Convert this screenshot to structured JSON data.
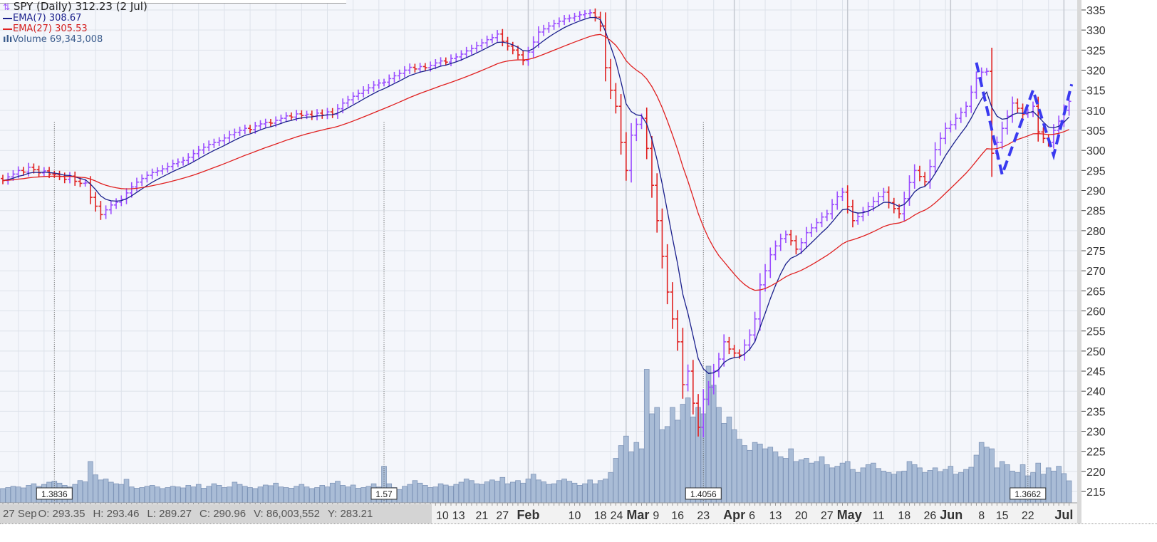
{
  "legend": {
    "title": "SPY (Daily) 312.23 (2 Jul)",
    "ema7": "EMA(7) 308.67",
    "ema27": "EMA(27) 305.53",
    "volume": "Volume 69,343,008"
  },
  "status": {
    "date": "27 Sep",
    "open": "O: 293.35",
    "high": "H: 293.46",
    "low": "L: 289.27",
    "close": "C: 290.96",
    "volume": "V: 86,003,552",
    "y": "Y: 283.21"
  },
  "colors": {
    "up": "#9b4dff",
    "down": "#e02020",
    "ema7": "#1a1f8c",
    "ema27": "#e02020",
    "volume": "#a9bcd6",
    "pattern": "#3a3af0"
  },
  "chart_data": {
    "type": "ohlc",
    "symbol": "SPY",
    "interval": "Daily",
    "ylim": [
      212,
      337
    ],
    "y_ticks": [
      215,
      220,
      225,
      230,
      235,
      240,
      245,
      250,
      255,
      260,
      265,
      270,
      275,
      280,
      285,
      290,
      295,
      300,
      305,
      310,
      315,
      320,
      325,
      330,
      335
    ],
    "x_ticks": [
      {
        "label": "10",
        "bar": 82
      },
      {
        "label": "13",
        "bar": 88
      },
      {
        "label": "21",
        "bar": 93
      },
      {
        "label": "27",
        "bar": 97
      },
      {
        "label": "Feb",
        "bar": 102,
        "bold": true
      },
      {
        "label": "10",
        "bar": 111
      },
      {
        "label": "18",
        "bar": 116
      },
      {
        "label": "24",
        "bar": 119
      },
      {
        "label": "Mar",
        "bar": 121,
        "bold": true
      },
      {
        "label": "9",
        "bar": 126
      },
      {
        "label": "16",
        "bar": 131
      },
      {
        "label": "23",
        "bar": 136
      },
      {
        "label": "Apr",
        "bar": 142,
        "bold": true
      },
      {
        "label": "6",
        "bar": 144
      },
      {
        "label": "13",
        "bar": 150
      },
      {
        "label": "20",
        "bar": 155
      },
      {
        "label": "27",
        "bar": 160
      },
      {
        "label": "May",
        "bar": 164,
        "bold": true
      },
      {
        "label": "11",
        "bar": 170
      },
      {
        "label": "18",
        "bar": 175
      },
      {
        "label": "26",
        "bar": 180
      },
      {
        "label": "Jun",
        "bar": 184,
        "bold": true
      },
      {
        "label": "8",
        "bar": 190
      },
      {
        "label": "15",
        "bar": 194
      },
      {
        "label": "22",
        "bar": 199
      },
      {
        "label": "Jul",
        "bar": 206,
        "bold": true
      }
    ],
    "close": [
      292.5,
      293.4,
      294.1,
      295.0,
      294.6,
      295.8,
      295.2,
      294.4,
      294.9,
      294.1,
      294.0,
      293.5,
      292.8,
      293.6,
      292.3,
      291.8,
      291.9,
      288.3,
      286.1,
      284.0,
      285.2,
      286.4,
      287.1,
      287.8,
      289.4,
      290.9,
      292.1,
      293.0,
      293.8,
      294.5,
      294.9,
      295.4,
      296.0,
      296.7,
      297.1,
      297.5,
      298.3,
      299.2,
      300.1,
      300.8,
      301.5,
      302.0,
      302.4,
      303.1,
      303.9,
      304.5,
      305.0,
      305.5,
      305.2,
      306.1,
      306.6,
      307.0,
      306.8,
      307.5,
      308.0,
      308.6,
      308.3,
      309.1,
      308.7,
      309.0,
      308.5,
      309.3,
      308.8,
      309.6,
      309.0,
      310.4,
      311.8,
      312.6,
      313.5,
      314.2,
      315.0,
      315.6,
      316.3,
      316.8,
      317.0,
      317.9,
      318.6,
      319.2,
      320.0,
      320.7,
      320.3,
      320.9,
      320.6,
      321.2,
      321.8,
      322.3,
      322.0,
      322.9,
      323.3,
      324.0,
      324.8,
      325.4,
      326.1,
      326.8,
      327.6,
      328.1,
      329.0,
      327.2,
      326.0,
      325.0,
      323.8,
      322.4,
      324.5,
      327.0,
      329.5,
      330.3,
      331.0,
      331.6,
      332.2,
      332.8,
      333.0,
      333.4,
      333.8,
      334.1,
      334.3,
      333.2,
      331.0,
      320.6,
      315.0,
      311.0,
      302.0,
      295.0,
      303.8,
      306.5,
      308.0,
      300.5,
      291.3,
      282.5,
      273.6,
      264.7,
      258.0,
      252.3,
      241.6,
      245.0,
      237.0,
      231.0,
      238.0,
      241.0,
      245.0,
      248.0,
      252.3,
      250.5,
      249.5,
      249.0,
      251.5,
      254.0,
      258.0,
      266.5,
      270.0,
      274.0,
      276.2,
      278.0,
      279.0,
      277.5,
      275.4,
      277.0,
      279.5,
      280.7,
      282.0,
      283.4,
      284.2,
      286.5,
      288.5,
      289.6,
      286.0,
      282.5,
      283.5,
      284.8,
      286.0,
      287.3,
      288.5,
      289.6,
      287.0,
      285.5,
      284.2,
      288.0,
      292.0,
      295.0,
      293.5,
      292.2,
      296.0,
      300.2,
      303.0,
      305.5,
      306.4,
      308.0,
      309.5,
      311.0,
      314.5,
      318.0,
      319.5,
      319.7,
      299.3,
      302.0,
      305.5,
      308.5,
      311.8,
      310.5,
      309.0,
      309.5,
      311.0,
      304.6,
      303.0,
      302.0,
      305.0,
      307.3,
      310.0,
      312.23
    ],
    "volume_millions": [
      45,
      48,
      52,
      50,
      47,
      55,
      60,
      52,
      58,
      65,
      68,
      62,
      55,
      50,
      58,
      70,
      66,
      130,
      88,
      72,
      75,
      65,
      60,
      58,
      74,
      50,
      46,
      48,
      52,
      55,
      50,
      45,
      48,
      52,
      50,
      47,
      55,
      50,
      58,
      46,
      52,
      60,
      55,
      48,
      50,
      65,
      58,
      52,
      48,
      45,
      50,
      56,
      54,
      62,
      50,
      48,
      46,
      52,
      58,
      50,
      45,
      48,
      55,
      50,
      62,
      68,
      55,
      50,
      56,
      46,
      48,
      52,
      60,
      50,
      115,
      60,
      48,
      42,
      52,
      58,
      70,
      62,
      55,
      48,
      50,
      60,
      56,
      52,
      58,
      65,
      75,
      70,
      60,
      58,
      66,
      72,
      68,
      80,
      60,
      65,
      70,
      62,
      75,
      90,
      72,
      66,
      58,
      60,
      70,
      75,
      68,
      62,
      55,
      60,
      72,
      60,
      70,
      75,
      95,
      140,
      180,
      210,
      160,
      190,
      170,
      420,
      280,
      300,
      230,
      240,
      300,
      260,
      310,
      330,
      270,
      300,
      280,
      430,
      370,
      300,
      250,
      270,
      230,
      200,
      180,
      165,
      190,
      185,
      170,
      175,
      160,
      145,
      140,
      170,
      130,
      135,
      140,
      125,
      130,
      145,
      120,
      110,
      115,
      125,
      130,
      105,
      95,
      110,
      120,
      125,
      108,
      100,
      95,
      90,
      98,
      100,
      130,
      120,
      110,
      95,
      102,
      110,
      98,
      105,
      115,
      90,
      95,
      105,
      112,
      150,
      190,
      175,
      170,
      110,
      130,
      120,
      100,
      95,
      120,
      85,
      95,
      125,
      90,
      110,
      100,
      115,
      92,
      69.34
    ],
    "volume_markers": [
      {
        "label": "1.3836",
        "bar": 10
      },
      {
        "label": "1.57",
        "bar": 74
      },
      {
        "label": "1.4056",
        "bar": 136
      },
      {
        "label": "1.3662",
        "bar": 199
      }
    ],
    "indicators": [
      {
        "name": "EMA(7)",
        "period": 7
      },
      {
        "name": "EMA(27)",
        "period": 27
      }
    ],
    "pattern_annotation": {
      "style": "dashed",
      "points": [
        {
          "bar": 189,
          "price": 321.9
        },
        {
          "bar": 194,
          "price": 294
        },
        {
          "bar": 200,
          "price": 315
        },
        {
          "bar": 204,
          "price": 298.8
        },
        {
          "bar": 207.5,
          "price": 316.5
        }
      ]
    },
    "grid": true
  }
}
